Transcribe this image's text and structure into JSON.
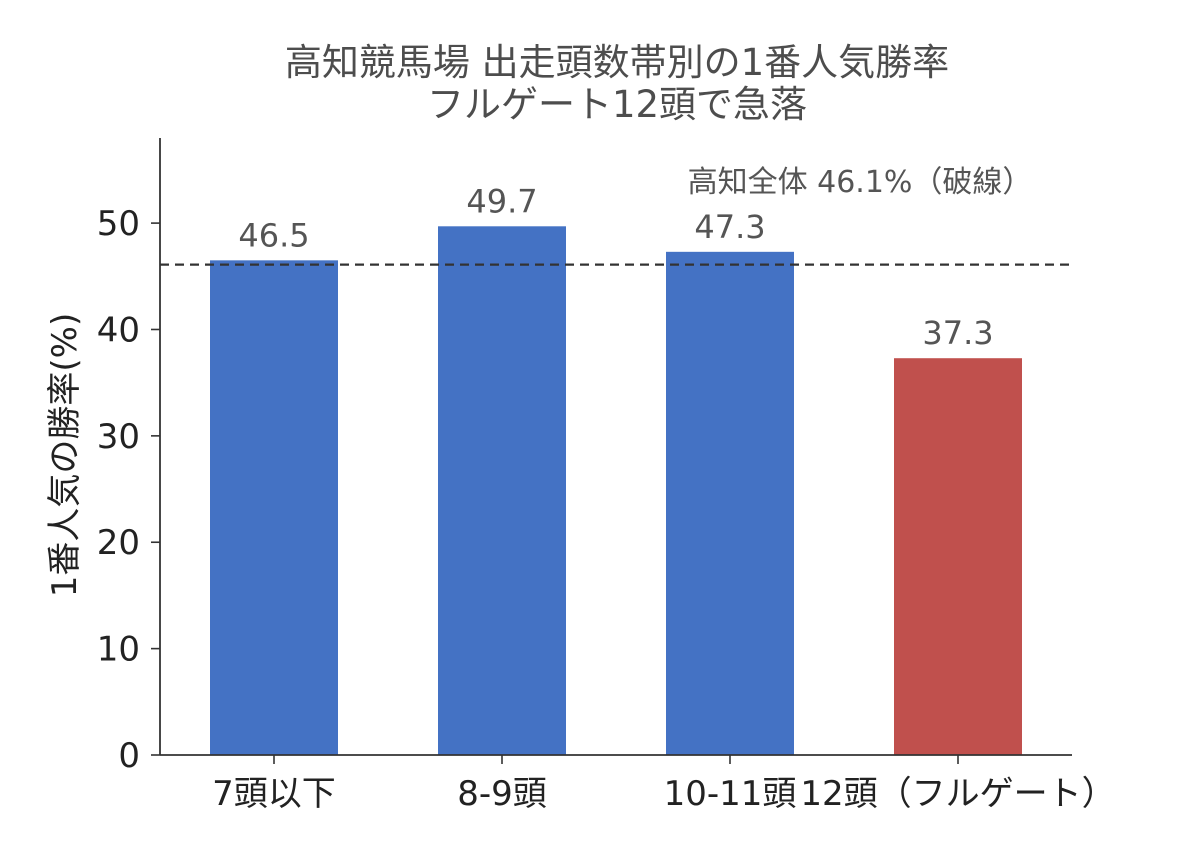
{
  "chart_data": {
    "type": "bar",
    "title_lines": [
      "高知競馬場 出走頭数帯別の1番人気勝率",
      "フルゲート12頭で急落"
    ],
    "xlabel": "",
    "ylabel": "1番人気の勝率(%)",
    "categories": [
      "7頭以下",
      "8-9頭",
      "10-11頭",
      "12頭（フルゲート）"
    ],
    "values": [
      46.5,
      49.7,
      47.3,
      37.3
    ],
    "data_labels": [
      "46.5",
      "49.7",
      "47.3",
      "37.3"
    ],
    "bar_colors": [
      "#4472c4",
      "#4472c4",
      "#4472c4",
      "#c0504d"
    ],
    "ylim": [
      0,
      58
    ],
    "yticks": [
      0,
      10,
      20,
      30,
      40,
      50
    ],
    "reference_line": {
      "value": 46.1,
      "style": "dashed",
      "color": "#333333",
      "label": "高知全体 46.1%（破線）"
    },
    "grid": false,
    "legend": "none"
  }
}
